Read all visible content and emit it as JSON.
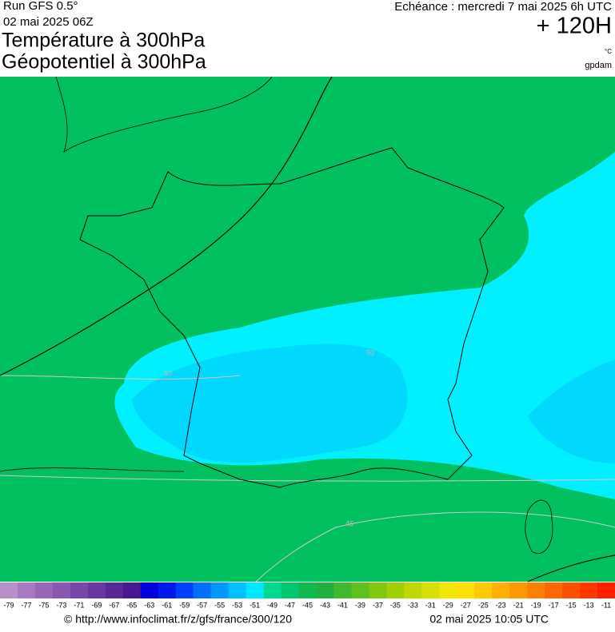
{
  "header": {
    "run": "Run GFS 0.5°",
    "run_date": "02 mai 2025 06Z",
    "title_1": "Température à 300hPa",
    "title_2": "Géopotentiel à 300hPa",
    "valid": "Echéance : mercredi 7 mai 2025 6h UTC",
    "lead": "+ 120H",
    "unit_1": "°C",
    "unit_2": "gpdam"
  },
  "map": {
    "contour_labels": [
      "50",
      "50",
      "45"
    ]
  },
  "colorbar": {
    "labels": [
      -79,
      -77,
      -75,
      -73,
      -71,
      -69,
      -67,
      -65,
      -63,
      -61,
      -59,
      -57,
      -55,
      -53,
      -51,
      -49,
      -47,
      -45,
      -43,
      -41,
      -39,
      -37,
      -35,
      -33,
      -31,
      -29,
      -27,
      -25,
      -23,
      -21,
      -19,
      -17,
      -15,
      -13,
      -11
    ],
    "colors": [
      "#b890c8",
      "#a878c0",
      "#9868b8",
      "#8858b0",
      "#7848a8",
      "#6838a0",
      "#582898",
      "#481890",
      "#0000e0",
      "#0018f0",
      "#0040ff",
      "#0070ff",
      "#0098ff",
      "#00c0ff",
      "#00e8ff",
      "#00d890",
      "#00c870",
      "#10b850",
      "#20b040",
      "#40b830",
      "#60c020",
      "#80c810",
      "#a0d000",
      "#c0d800",
      "#d8e000",
      "#f0e800",
      "#ffe000",
      "#ffc800",
      "#ffb000",
      "#ff9800",
      "#ff8000",
      "#ff6800",
      "#ff5000",
      "#ff3800",
      "#ff2000"
    ]
  },
  "footer": {
    "source": "© http://www.infoclimat.fr/z/gfs/france/300/120",
    "generated": "02 mai 2025 10:05 UTC"
  }
}
